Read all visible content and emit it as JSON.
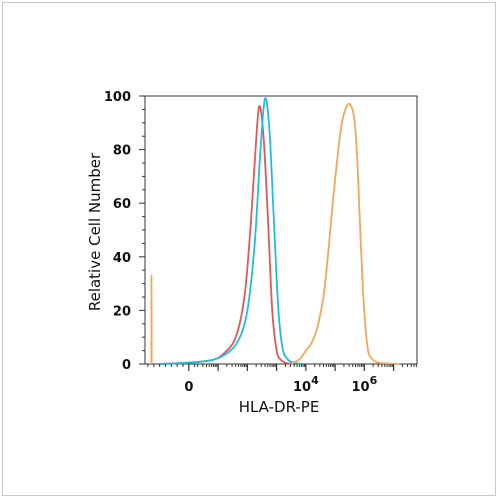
{
  "chart_data": {
    "type": "line",
    "xlabel": "HLA-DR-PE",
    "ylabel": "Relative Cell Number",
    "x_scale": "biexponential (log10 units beyond 0)",
    "xlim": [
      -1.5,
      7.8
    ],
    "ylim": [
      0,
      100
    ],
    "grid": false,
    "y_ticks": [
      {
        "value": 0,
        "label": "0"
      },
      {
        "value": 20,
        "label": "20"
      },
      {
        "value": 40,
        "label": "40"
      },
      {
        "value": 60,
        "label": "60"
      },
      {
        "value": 80,
        "label": "80"
      },
      {
        "value": 100,
        "label": "100"
      }
    ],
    "x_ticks": [
      {
        "value": 0,
        "label": "0",
        "exp": ""
      },
      {
        "value": 4,
        "label": "10",
        "exp": "4"
      },
      {
        "value": 6,
        "label": "10",
        "exp": "6"
      }
    ],
    "series": [
      {
        "color": "#e15759",
        "x": [
          -1.0,
          0.0,
          0.8,
          1.2,
          1.6,
          1.9,
          2.1,
          2.25,
          2.4,
          2.55,
          2.7,
          2.85,
          3.0,
          3.15,
          3.3,
          3.5
        ],
        "y": [
          0,
          0.5,
          1.5,
          4,
          10,
          25,
          50,
          75,
          96,
          85,
          55,
          20,
          5,
          1.5,
          0.5,
          0
        ]
      },
      {
        "color": "#1bbfdc",
        "x": [
          -1.0,
          0.0,
          0.8,
          1.3,
          1.7,
          2.0,
          2.25,
          2.45,
          2.6,
          2.75,
          2.9,
          3.05,
          3.2,
          3.4,
          3.6,
          3.9
        ],
        "y": [
          0,
          0.5,
          1.5,
          4,
          9,
          20,
          45,
          80,
          99,
          88,
          55,
          22,
          6,
          1.5,
          0.5,
          0
        ]
      },
      {
        "color": "#f3a65a",
        "x": [
          3.5,
          3.8,
          4.0,
          4.2,
          4.4,
          4.6,
          4.75,
          4.9,
          5.05,
          5.2,
          5.35,
          5.5,
          5.65,
          5.75,
          5.85,
          5.95,
          6.05,
          6.15,
          6.3,
          6.5,
          6.8,
          7.2
        ],
        "y": [
          0,
          2,
          5,
          8,
          14,
          25,
          40,
          58,
          74,
          88,
          95,
          97,
          92,
          78,
          52,
          28,
          12,
          4,
          1.5,
          0.5,
          0.2,
          0
        ]
      },
      {
        "color": "#f3a65a",
        "x": [
          -1.28,
          -1.28,
          -1.27
        ],
        "y": [
          0,
          33,
          0
        ]
      }
    ]
  }
}
